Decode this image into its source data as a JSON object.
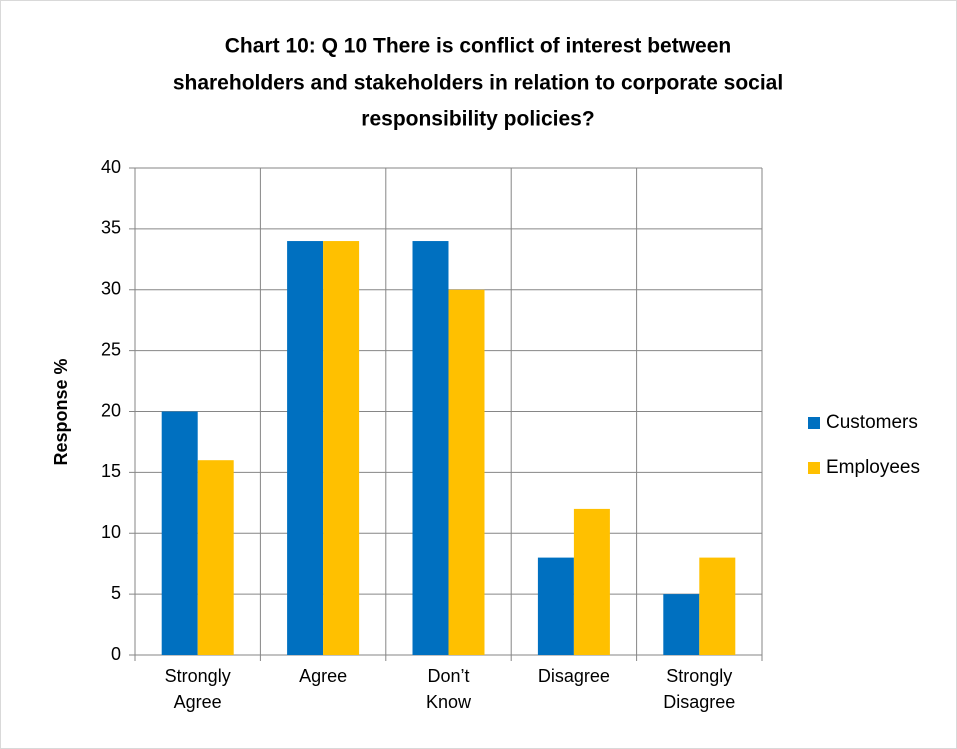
{
  "chart_data": {
    "type": "bar",
    "title": [
      "Chart 10: Q 10 There is conflict of interest between",
      "shareholders and stakeholders in relation to corporate social",
      "responsibility policies?"
    ],
    "ylabel": "Response  %",
    "categories": [
      "Strongly Agree",
      "Agree",
      "Don’t Know",
      "Disagree",
      "Strongly Disagree"
    ],
    "series": [
      {
        "name": "Customers",
        "color": "#0070c0",
        "values": [
          20,
          34,
          34,
          8,
          5
        ]
      },
      {
        "name": "Employees",
        "color": "#ffc000",
        "values": [
          16,
          34,
          30,
          12,
          8
        ]
      }
    ],
    "ylim": [
      0,
      40
    ],
    "yticks": [
      0,
      5,
      10,
      15,
      20,
      25,
      30,
      35,
      40
    ],
    "grid": true,
    "legend": "right"
  }
}
